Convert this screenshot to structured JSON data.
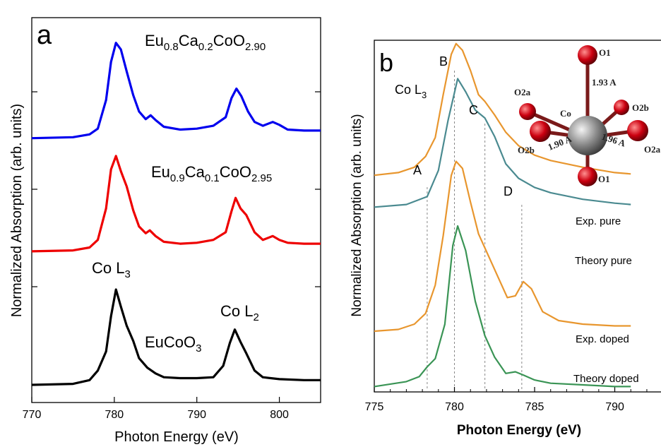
{
  "chart_data": [
    {
      "panel_label": "a",
      "type": "line",
      "xlabel": "Photon Energy (eV)",
      "ylabel": "Normalized Absorption (arb. units)",
      "xlim": [
        770,
        805
      ],
      "xticks": [
        770,
        780,
        790,
        800
      ],
      "annotations": {
        "co_l3": "Co L",
        "co_l3_sub": "3",
        "co_l2": "Co L",
        "co_l2_sub": "2"
      },
      "series": [
        {
          "name_parts": [
            "Eu",
            "0.8",
            "Ca",
            "0.2",
            "CoO",
            "2.90"
          ],
          "color": "#0000ee",
          "offset": 2.55,
          "points": [
            [
              770,
              0.0
            ],
            [
              775,
              0.01
            ],
            [
              777,
              0.04
            ],
            [
              778,
              0.1
            ],
            [
              779,
              0.4
            ],
            [
              779.6,
              0.8
            ],
            [
              780.2,
              1.0
            ],
            [
              780.8,
              0.93
            ],
            [
              781.5,
              0.7
            ],
            [
              782.3,
              0.45
            ],
            [
              783,
              0.28
            ],
            [
              783.8,
              0.2
            ],
            [
              784.4,
              0.24
            ],
            [
              785,
              0.19
            ],
            [
              786,
              0.12
            ],
            [
              788,
              0.09
            ],
            [
              790,
              0.1
            ],
            [
              792,
              0.13
            ],
            [
              793.5,
              0.22
            ],
            [
              794.2,
              0.42
            ],
            [
              794.8,
              0.52
            ],
            [
              795.4,
              0.44
            ],
            [
              796.2,
              0.28
            ],
            [
              797,
              0.17
            ],
            [
              798,
              0.13
            ],
            [
              799.2,
              0.17
            ],
            [
              800,
              0.14
            ],
            [
              801,
              0.09
            ],
            [
              803,
              0.08
            ],
            [
              805,
              0.08
            ]
          ]
        },
        {
          "name_parts": [
            "Eu",
            "0.9",
            "Ca",
            "0.1",
            "CoO",
            "2.95"
          ],
          "color": "#ee0000",
          "offset": 1.38,
          "points": [
            [
              770,
              0.0
            ],
            [
              775,
              0.01
            ],
            [
              777,
              0.04
            ],
            [
              778,
              0.12
            ],
            [
              779,
              0.45
            ],
            [
              779.6,
              0.86
            ],
            [
              780.2,
              1.0
            ],
            [
              780.8,
              0.84
            ],
            [
              781.5,
              0.68
            ],
            [
              782.3,
              0.43
            ],
            [
              783,
              0.26
            ],
            [
              783.8,
              0.19
            ],
            [
              784.3,
              0.22
            ],
            [
              785,
              0.16
            ],
            [
              786,
              0.1
            ],
            [
              788,
              0.08
            ],
            [
              790,
              0.09
            ],
            [
              792,
              0.12
            ],
            [
              793.5,
              0.2
            ],
            [
              794.2,
              0.42
            ],
            [
              794.7,
              0.56
            ],
            [
              795.3,
              0.45
            ],
            [
              796,
              0.38
            ],
            [
              797,
              0.2
            ],
            [
              798,
              0.12
            ],
            [
              799.2,
              0.16
            ],
            [
              800,
              0.12
            ],
            [
              801,
              0.09
            ],
            [
              803,
              0.08
            ],
            [
              805,
              0.08
            ]
          ]
        },
        {
          "name_parts": [
            "EuCoO",
            "3"
          ],
          "color": "#000000",
          "offset": 0.0,
          "points": [
            [
              770,
              0.0
            ],
            [
              775,
              0.01
            ],
            [
              777,
              0.05
            ],
            [
              778,
              0.15
            ],
            [
              779,
              0.35
            ],
            [
              779.6,
              0.72
            ],
            [
              780.2,
              1.0
            ],
            [
              780.8,
              0.82
            ],
            [
              781.5,
              0.62
            ],
            [
              782.3,
              0.46
            ],
            [
              783,
              0.28
            ],
            [
              784,
              0.18
            ],
            [
              785,
              0.12
            ],
            [
              786,
              0.08
            ],
            [
              788,
              0.07
            ],
            [
              790,
              0.07
            ],
            [
              792,
              0.08
            ],
            [
              793.2,
              0.2
            ],
            [
              794,
              0.44
            ],
            [
              794.6,
              0.58
            ],
            [
              795.3,
              0.45
            ],
            [
              796,
              0.33
            ],
            [
              797,
              0.15
            ],
            [
              798,
              0.08
            ],
            [
              800,
              0.06
            ],
            [
              803,
              0.05
            ],
            [
              805,
              0.05
            ]
          ]
        }
      ]
    },
    {
      "panel_label": "b",
      "type": "line",
      "xlabel": "Photon Energy (eV)",
      "ylabel": "Normalized Absorption (arb. units)",
      "xlim": [
        775,
        793.5
      ],
      "xticks": [
        775,
        780,
        785,
        790
      ],
      "annotations": {
        "co_l3": "Co L",
        "co_l3_sub": "3",
        "peak_labels": [
          {
            "label": "A",
            "x": 778.3
          },
          {
            "label": "B",
            "x": 780.0
          },
          {
            "label": "C",
            "x": 781.9
          },
          {
            "label": "D",
            "x": 784.2
          }
        ]
      },
      "series": [
        {
          "name": "Exp. pure",
          "color": "#e8962e",
          "offset": 3.0,
          "points": [
            [
              775,
              0.02
            ],
            [
              776.5,
              0.04
            ],
            [
              777.5,
              0.08
            ],
            [
              778.2,
              0.16
            ],
            [
              778.8,
              0.3
            ],
            [
              779.3,
              0.62
            ],
            [
              779.8,
              0.92
            ],
            [
              780.1,
              1.0
            ],
            [
              780.5,
              0.95
            ],
            [
              781,
              0.8
            ],
            [
              781.5,
              0.62
            ],
            [
              781.9,
              0.57
            ],
            [
              782.5,
              0.47
            ],
            [
              783.2,
              0.34
            ],
            [
              784,
              0.24
            ],
            [
              785,
              0.17
            ],
            [
              786,
              0.13
            ],
            [
              788,
              0.08
            ],
            [
              790,
              0.04
            ],
            [
              791,
              0.03
            ]
          ]
        },
        {
          "name": "Theory pure",
          "color": "#4a8a90",
          "offset": 2.55,
          "points": [
            [
              775,
              0.02
            ],
            [
              777,
              0.04
            ],
            [
              778.3,
              0.1
            ],
            [
              779,
              0.3
            ],
            [
              779.6,
              0.68
            ],
            [
              780.2,
              1.0
            ],
            [
              780.7,
              0.9
            ],
            [
              781.3,
              0.76
            ],
            [
              781.9,
              0.7
            ],
            [
              782.5,
              0.56
            ],
            [
              783.2,
              0.35
            ],
            [
              784,
              0.24
            ],
            [
              785,
              0.17
            ],
            [
              786,
              0.13
            ],
            [
              788,
              0.08
            ],
            [
              790,
              0.05
            ],
            [
              791,
              0.04
            ]
          ]
        },
        {
          "name": "Exp. doped",
          "color": "#e8962e",
          "offset": 0.78,
          "points": [
            [
              775,
              0.02
            ],
            [
              776.5,
              0.03
            ],
            [
              777.5,
              0.06
            ],
            [
              778.2,
              0.12
            ],
            [
              778.8,
              0.28
            ],
            [
              779.3,
              0.56
            ],
            [
              779.8,
              0.9
            ],
            [
              780.1,
              0.98
            ],
            [
              780.5,
              0.94
            ],
            [
              781,
              0.75
            ],
            [
              781.5,
              0.57
            ],
            [
              782,
              0.47
            ],
            [
              782.6,
              0.35
            ],
            [
              783.3,
              0.21
            ],
            [
              783.8,
              0.22
            ],
            [
              784.3,
              0.3
            ],
            [
              784.8,
              0.26
            ],
            [
              785.5,
              0.13
            ],
            [
              786.5,
              0.08
            ],
            [
              788,
              0.06
            ],
            [
              790,
              0.05
            ],
            [
              791,
              0.05
            ]
          ]
        },
        {
          "name": "Theory doped",
          "color": "#3a9455",
          "offset": 0.0,
          "points": [
            [
              775,
              0.02
            ],
            [
              777,
              0.05
            ],
            [
              777.8,
              0.08
            ],
            [
              778.3,
              0.14
            ],
            [
              778.8,
              0.19
            ],
            [
              779.4,
              0.4
            ],
            [
              779.9,
              0.88
            ],
            [
              780.2,
              1.0
            ],
            [
              780.7,
              0.85
            ],
            [
              781.3,
              0.54
            ],
            [
              781.9,
              0.33
            ],
            [
              782.5,
              0.2
            ],
            [
              783.2,
              0.1
            ],
            [
              783.8,
              0.11
            ],
            [
              784.3,
              0.09
            ],
            [
              785,
              0.06
            ],
            [
              786,
              0.04
            ],
            [
              788,
              0.03
            ],
            [
              790,
              0.02
            ],
            [
              791,
              0.02
            ]
          ]
        }
      ]
    }
  ],
  "inset": {
    "atoms": [
      {
        "label": "O1"
      },
      {
        "label": "O2a"
      },
      {
        "label": "Co"
      },
      {
        "label": "O2b"
      },
      {
        "label": "O2b"
      },
      {
        "label": "O2a"
      },
      {
        "label": "O1"
      }
    ],
    "bond_labels": [
      "1.93 A",
      "1.90 A",
      "1.96 A"
    ],
    "center_color": "#8a8a8a",
    "ligand_color": "#cc0010"
  }
}
